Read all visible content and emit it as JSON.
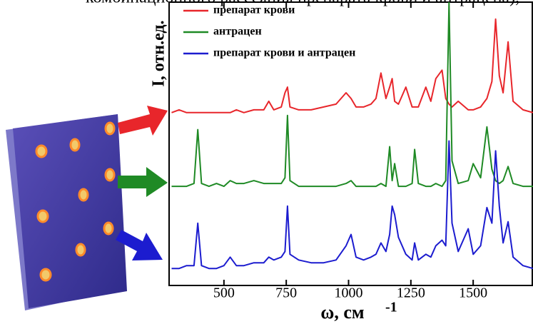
{
  "top_caption": "комбинационного рассеяния препарата крови и антрацена),",
  "chart_data": {
    "type": "line",
    "x_label": "ω, см",
    "x_label_sup": "-1",
    "y_label": "I, отн.ед.",
    "x": [
      290,
      320,
      350,
      380,
      395,
      410,
      440,
      470,
      500,
      525,
      550,
      580,
      620,
      660,
      680,
      700,
      730,
      745,
      755,
      765,
      800,
      850,
      900,
      950,
      990,
      1010,
      1030,
      1060,
      1090,
      1110,
      1130,
      1150,
      1165,
      1175,
      1185,
      1200,
      1230,
      1255,
      1265,
      1280,
      1310,
      1330,
      1350,
      1375,
      1390,
      1403,
      1415,
      1440,
      1480,
      1500,
      1530,
      1555,
      1575,
      1590,
      1605,
      1620,
      1640,
      1660,
      1700,
      1740
    ],
    "series": [
      {
        "name": "препарат крови",
        "color": "#e8262b",
        "values": [
          61,
          62,
          61,
          61,
          61,
          61,
          61,
          61,
          61,
          61,
          62,
          61,
          62,
          62,
          65,
          62,
          63,
          68,
          70,
          63,
          62,
          62,
          63,
          64,
          68,
          66,
          63,
          63,
          64,
          66,
          75,
          66,
          70,
          73,
          65,
          64,
          70,
          63,
          63,
          63,
          70,
          65,
          73,
          76,
          66,
          64,
          63,
          65,
          62,
          62,
          63,
          66,
          72,
          94,
          74,
          68,
          86,
          65,
          62,
          61
        ]
      },
      {
        "name": "антрацен",
        "color": "#1f8a25",
        "values": [
          35,
          35,
          35,
          36,
          55,
          36,
          35,
          36,
          35,
          37,
          36,
          36,
          37,
          36,
          36,
          36,
          36,
          38,
          60,
          37,
          35,
          35,
          35,
          35,
          36,
          37,
          35,
          35,
          35,
          35,
          36,
          35,
          49,
          37,
          43,
          35,
          35,
          36,
          48,
          36,
          35,
          35,
          36,
          35,
          37,
          100,
          44,
          36,
          37,
          43,
          38,
          56,
          41,
          37,
          36,
          37,
          42,
          36,
          35,
          35
        ]
      },
      {
        "name": "препарат крови и антрацен",
        "color": "#1c1ccf",
        "values": [
          6,
          6,
          7,
          7,
          22,
          7,
          6,
          6,
          7,
          10,
          7,
          7,
          8,
          8,
          10,
          9,
          10,
          12,
          28,
          11,
          9,
          8,
          8,
          9,
          14,
          18,
          10,
          9,
          10,
          11,
          15,
          12,
          18,
          28,
          25,
          17,
          11,
          9,
          15,
          9,
          11,
          10,
          14,
          16,
          14,
          51,
          22,
          12,
          20,
          11,
          14,
          27.5,
          22,
          47.5,
          28,
          15,
          22.5,
          10,
          7,
          6
        ]
      }
    ],
    "xlim": [
      280,
      1740
    ],
    "xticks": [
      500,
      750,
      1000,
      1250,
      1500
    ],
    "ylim": [
      0,
      100
    ],
    "legend": "upper left",
    "grid": false
  }
}
